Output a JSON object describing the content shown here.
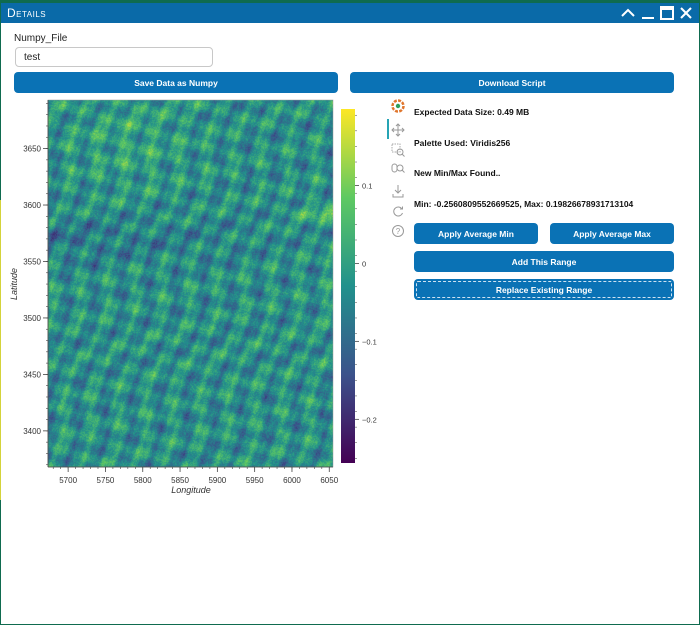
{
  "window": {
    "title": "Details"
  },
  "form": {
    "numpy_file_label": "Numpy_File",
    "numpy_file_value": "test"
  },
  "buttons": {
    "save_numpy": "Save Data as Numpy",
    "download_script": "Download Script",
    "apply_avg_min": "Apply Average Min",
    "apply_avg_max": "Apply Average Max",
    "add_range": "Add This Range",
    "replace_range": "Replace Existing Range"
  },
  "info": {
    "expected_size": "Expected Data Size: 0.49 MB",
    "palette": "Palette Used: Viridis256",
    "minmax_status": "New Min/Max Found..",
    "minmax_values": "Min: -0.2560809552669525, Max: 0.19826678931713104"
  },
  "toolbar": {
    "tools": [
      "bokeh-logo-icon",
      "pan-icon",
      "box-zoom-icon",
      "wheel-zoom-icon",
      "save-icon",
      "reset-icon",
      "help-icon"
    ]
  },
  "colors": {
    "accent": "#0a72b5",
    "titlebar": "#0a6aa8"
  },
  "chart_data": {
    "type": "heatmap",
    "palette": "Viridis256",
    "xlabel": "Longitude",
    "ylabel": "Latitude",
    "xlim": [
      5673,
      6055
    ],
    "ylim": [
      3368,
      3693
    ],
    "xticks": [
      5700,
      5750,
      5800,
      5850,
      5900,
      5950,
      6000,
      6050
    ],
    "yticks": [
      3400,
      3450,
      3500,
      3550,
      3600,
      3650
    ],
    "colorbar": {
      "min": -0.256,
      "max": 0.198,
      "ticks": [
        -0.2,
        -0.1,
        0,
        0.1
      ]
    },
    "grid": false
  }
}
